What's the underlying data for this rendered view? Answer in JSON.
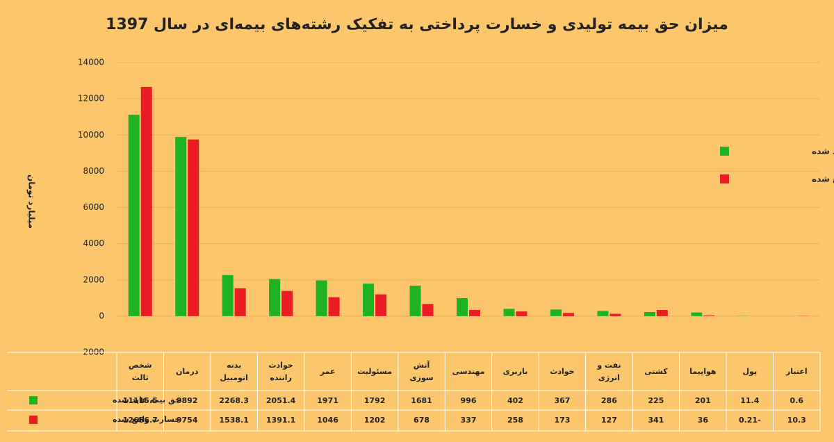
{
  "chart_data": {
    "type": "bar",
    "title": "میزان حق بیمه تولیدی و خسارت پرداختی به تفکیک رشته‌های بیمه‌ای در سال 1397",
    "y_label": "میلیارد تومان",
    "categories": [
      "شخص ثالث",
      "درمان",
      "بدنه اتومبیل",
      "حوادث راننده",
      "عمر",
      "مسئولیت",
      "آتش سوزی",
      "مهندسی",
      "باربری",
      "حوادث",
      "نفت و انرژی",
      "کشتی",
      "هواپیما",
      "پول",
      "اعتبار"
    ],
    "series": [
      {
        "name": "حق بیمه عاید شده",
        "color": "#1db324",
        "values": [
          11115.5,
          9892,
          2268.3,
          2051.4,
          1971,
          1792,
          1681,
          996,
          402,
          367,
          286,
          225,
          201,
          11.4,
          0.6
        ]
      },
      {
        "name": "خسارت واقع شده",
        "color": "#ec1c24",
        "values": [
          12656.7,
          9754,
          1538.1,
          1391.1,
          1046,
          1202,
          678,
          337,
          258,
          173,
          127,
          341,
          36,
          -0.21,
          10.3
        ]
      }
    ],
    "ylim": [
      -2000,
      14000
    ],
    "yticks": [
      -2000,
      0,
      2000,
      4000,
      6000,
      8000,
      10000,
      12000,
      14000
    ],
    "grid": true
  }
}
